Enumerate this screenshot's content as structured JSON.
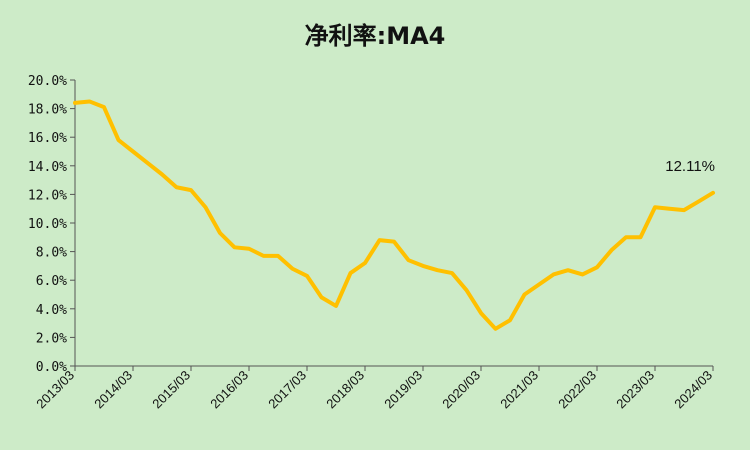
{
  "chart_data": {
    "type": "line",
    "title": "净利率:MA4",
    "xlabel": "",
    "ylabel": "",
    "ylim": [
      0,
      20
    ],
    "y_tick_labels": [
      "0.0%",
      "2.0%",
      "4.0%",
      "6.0%",
      "8.0%",
      "10.0%",
      "12.0%",
      "14.0%",
      "16.0%",
      "18.0%",
      "20.0%"
    ],
    "x_tick_labels": [
      "2013/03",
      "2014/03",
      "2015/03",
      "2016/03",
      "2017/03",
      "2018/03",
      "2019/03",
      "2020/03",
      "2021/03",
      "2022/03",
      "2023/03",
      "2024/03"
    ],
    "grid": false,
    "legend": "none",
    "line_color": "#ffc000",
    "series": [
      {
        "x": [
          "2013/03",
          "2013/06",
          "2013/09",
          "2013/12",
          "2014/03",
          "2014/06",
          "2014/09",
          "2014/12",
          "2015/03",
          "2015/06",
          "2015/09",
          "2015/12",
          "2016/03",
          "2016/06",
          "2016/09",
          "2016/12",
          "2017/03",
          "2017/06",
          "2017/09",
          "2017/12",
          "2018/03",
          "2018/06",
          "2018/09",
          "2018/12",
          "2019/03",
          "2019/06",
          "2019/09",
          "2019/12",
          "2020/03",
          "2020/06",
          "2020/09",
          "2020/12",
          "2021/03",
          "2021/06",
          "2021/09",
          "2021/12",
          "2022/03",
          "2022/06",
          "2022/09",
          "2022/12",
          "2023/03",
          "2023/06",
          "2023/09",
          "2023/12",
          "2024/03"
        ],
        "values": [
          18.4,
          18.5,
          18.1,
          15.8,
          15.0,
          14.2,
          13.4,
          12.5,
          12.3,
          11.1,
          9.3,
          8.3,
          8.2,
          7.7,
          7.7,
          6.8,
          6.3,
          4.8,
          4.2,
          6.5,
          7.2,
          8.8,
          8.7,
          7.4,
          7.0,
          6.7,
          6.5,
          5.3,
          3.7,
          2.6,
          3.2,
          5.0,
          5.7,
          6.4,
          6.7,
          6.4,
          6.9,
          8.1,
          9.0,
          9.0,
          11.1,
          11.0,
          10.9,
          11.5,
          12.11
        ]
      }
    ],
    "data_label": "12.11%"
  }
}
